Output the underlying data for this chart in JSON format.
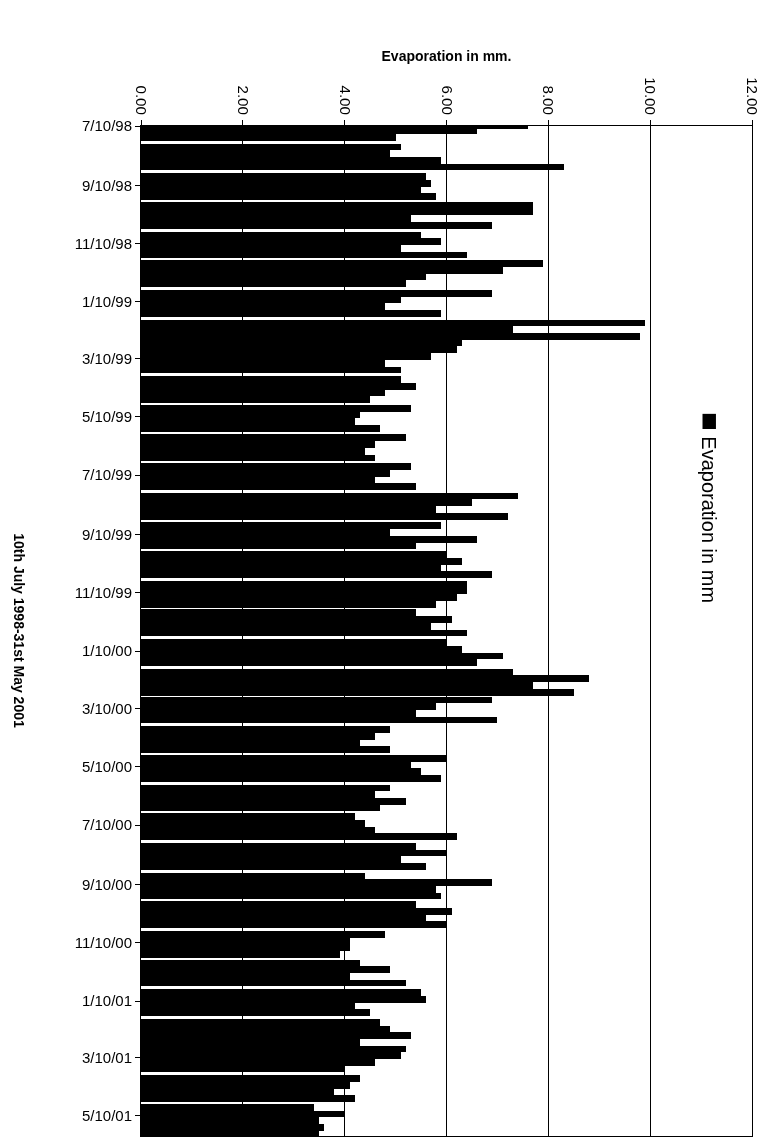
{
  "chart_data": {
    "type": "bar",
    "orientation": "horizontal",
    "xlabel": "Evaporation in mm.",
    "ylabel": "10th July 1998-31st May 2001",
    "x": [
      "1998-07-10",
      "1998-07-15",
      "1998-07-22",
      "1998-08-01",
      "1998-08-08",
      "1998-08-15",
      "1998-08-22",
      "1998-09-01",
      "1998-09-08",
      "1998-09-15",
      "1998-09-22",
      "1998-10-01",
      "1998-10-08",
      "1998-10-15",
      "1998-10-22",
      "1998-11-01",
      "1998-11-08",
      "1998-11-15",
      "1998-11-22",
      "1998-12-01",
      "1998-12-08",
      "1998-12-15",
      "1998-12-22",
      "1999-01-01",
      "1999-01-08",
      "1999-01-15",
      "1999-01-22",
      "1999-02-01",
      "1999-02-08",
      "1999-02-15",
      "1999-02-22",
      "1999-03-01",
      "1999-03-08",
      "1999-03-15",
      "1999-03-22",
      "1999-04-01",
      "1999-04-08",
      "1999-04-15",
      "1999-04-22",
      "1999-05-01",
      "1999-05-08",
      "1999-05-15",
      "1999-05-22",
      "1999-06-01",
      "1999-06-08",
      "1999-06-15",
      "1999-06-22",
      "1999-07-01",
      "1999-07-08",
      "1999-07-15",
      "1999-07-22",
      "1999-08-01",
      "1999-08-08",
      "1999-08-15",
      "1999-08-22",
      "1999-09-01",
      "1999-09-08",
      "1999-09-15",
      "1999-09-22",
      "1999-10-01",
      "1999-10-08",
      "1999-10-15",
      "1999-10-22",
      "1999-11-01",
      "1999-11-08",
      "1999-11-15",
      "1999-11-22",
      "1999-12-01",
      "1999-12-08",
      "1999-12-15",
      "1999-12-22",
      "2000-01-01",
      "2000-01-08",
      "2000-01-15",
      "2000-01-22",
      "2000-02-01",
      "2000-02-08",
      "2000-02-15",
      "2000-02-22",
      "2000-03-01",
      "2000-03-08",
      "2000-03-15",
      "2000-03-22",
      "2000-04-01",
      "2000-04-08",
      "2000-04-15",
      "2000-04-22",
      "2000-05-01",
      "2000-05-08",
      "2000-05-15",
      "2000-05-22",
      "2000-06-01",
      "2000-06-08",
      "2000-06-15",
      "2000-06-22",
      "2000-07-01",
      "2000-07-08",
      "2000-07-15",
      "2000-07-22",
      "2000-08-01",
      "2000-08-08",
      "2000-08-15",
      "2000-08-22",
      "2000-09-01",
      "2000-09-08",
      "2000-09-15",
      "2000-09-22",
      "2000-10-01",
      "2000-10-08",
      "2000-10-15",
      "2000-10-22",
      "2000-11-01",
      "2000-11-08",
      "2000-11-15",
      "2000-11-22",
      "2000-12-01",
      "2000-12-08",
      "2000-12-15",
      "2000-12-22",
      "2001-01-01",
      "2001-01-08",
      "2001-01-15",
      "2001-01-22",
      "2001-02-01",
      "2001-02-08",
      "2001-02-15",
      "2001-02-22",
      "2001-03-01",
      "2001-03-08",
      "2001-03-15",
      "2001-03-22",
      "2001-04-01",
      "2001-04-08",
      "2001-04-15",
      "2001-04-22",
      "2001-05-01",
      "2001-05-08",
      "2001-05-15",
      "2001-05-22",
      "2001-05-29"
    ],
    "series": [
      {
        "name": "Evaporation in mm",
        "color": "#000000",
        "values": [
          7.6,
          6.6,
          5.0,
          5.1,
          4.9,
          5.9,
          8.3,
          5.6,
          5.7,
          5.5,
          5.8,
          7.7,
          7.7,
          5.3,
          6.9,
          5.5,
          5.9,
          5.1,
          6.4,
          7.9,
          7.1,
          5.6,
          5.2,
          6.9,
          5.1,
          4.8,
          5.9,
          9.9,
          7.3,
          9.8,
          6.3,
          6.2,
          5.7,
          4.8,
          5.1,
          5.1,
          5.4,
          4.8,
          4.5,
          5.3,
          4.3,
          4.2,
          4.7,
          5.2,
          4.6,
          4.4,
          4.6,
          5.3,
          4.9,
          4.6,
          5.4,
          7.4,
          6.5,
          5.8,
          7.2,
          5.9,
          4.9,
          6.6,
          5.4,
          6.0,
          6.3,
          5.9,
          6.9,
          6.4,
          6.4,
          6.2,
          5.8,
          5.4,
          6.1,
          5.7,
          6.4,
          6.0,
          6.3,
          7.1,
          6.6,
          7.3,
          8.8,
          7.7,
          8.5,
          6.9,
          5.8,
          5.4,
          7.0,
          4.9,
          4.6,
          4.3,
          4.9,
          6.0,
          5.3,
          5.5,
          5.9,
          4.9,
          4.6,
          5.2,
          4.7,
          4.2,
          4.4,
          4.6,
          6.2,
          5.4,
          6.0,
          5.1,
          5.6,
          4.4,
          6.9,
          5.8,
          5.9,
          5.4,
          6.1,
          5.6,
          6.0,
          4.8,
          4.1,
          4.1,
          3.9,
          4.3,
          4.9,
          4.1,
          5.2,
          5.5,
          5.6,
          4.2,
          4.5,
          4.7,
          4.9,
          5.3,
          4.3,
          5.2,
          5.1,
          4.6,
          4.0,
          4.3,
          4.1,
          3.8,
          4.2,
          3.4,
          4.0,
          3.5,
          3.6,
          3.5
        ]
      }
    ],
    "xlim": [
      0,
      12
    ],
    "xticks": [
      {
        "value": 0,
        "label": "0.00"
      },
      {
        "value": 2,
        "label": "2.00"
      },
      {
        "value": 4,
        "label": "4.00"
      },
      {
        "value": 6,
        "label": "6.00"
      },
      {
        "value": 8,
        "label": "8.00"
      },
      {
        "value": 10,
        "label": "10.00"
      },
      {
        "value": 12,
        "label": "12.00"
      }
    ],
    "ylim": [
      "2001-05-31",
      "1998-07-10"
    ],
    "yticks": [
      {
        "value": "1998-07-10",
        "label": "7/10/98"
      },
      {
        "value": "1998-09-10",
        "label": "9/10/98"
      },
      {
        "value": "1998-11-10",
        "label": "11/10/98"
      },
      {
        "value": "1999-01-10",
        "label": "1/10/99"
      },
      {
        "value": "1999-03-10",
        "label": "3/10/99"
      },
      {
        "value": "1999-05-10",
        "label": "5/10/99"
      },
      {
        "value": "1999-07-10",
        "label": "7/10/99"
      },
      {
        "value": "1999-09-10",
        "label": "9/10/99"
      },
      {
        "value": "1999-11-10",
        "label": "11/10/99"
      },
      {
        "value": "2000-01-10",
        "label": "1/10/00"
      },
      {
        "value": "2000-03-10",
        "label": "3/10/00"
      },
      {
        "value": "2000-05-10",
        "label": "5/10/00"
      },
      {
        "value": "2000-07-10",
        "label": "7/10/00"
      },
      {
        "value": "2000-09-10",
        "label": "9/10/00"
      },
      {
        "value": "2000-11-10",
        "label": "11/10/00"
      },
      {
        "value": "2001-01-10",
        "label": "1/10/01"
      },
      {
        "value": "2001-03-10",
        "label": "3/10/01"
      },
      {
        "value": "2001-05-10",
        "label": "5/10/01"
      }
    ],
    "grid": "x",
    "legend": "right"
  }
}
